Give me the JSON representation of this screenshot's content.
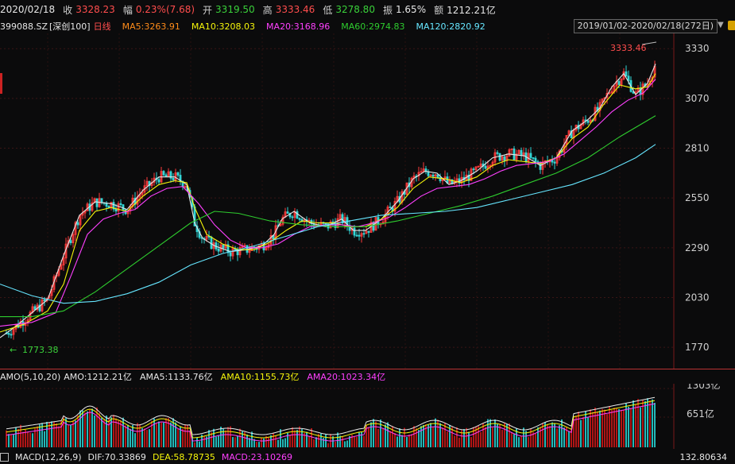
{
  "header": {
    "date": "2020/02/18",
    "close_label": "收",
    "close_value": "3328.23",
    "change_label": "幅",
    "change_value": "0.23%(7.68)",
    "open_label": "开",
    "open_value": "3319.50",
    "high_label": "高",
    "high_value": "3333.46",
    "low_label": "低",
    "low_value": "3278.80",
    "amp_label": "振",
    "amp_value": "1.65%",
    "amount_label": "额",
    "amount_value": "1212.21亿"
  },
  "legend": {
    "code": "399088.SZ",
    "name": "[深创100]",
    "period": "日线",
    "ma5": "MA5:3263.91",
    "ma10": "MA10:3208.03",
    "ma20": "MA20:3168.96",
    "ma60": "MA60:2974.83",
    "ma120": "MA120:2820.92",
    "range": "2019/01/02-2020/02/18(272日)"
  },
  "colors": {
    "up": "#ff3b3b",
    "down": "#33d6d6",
    "ma5": "#e8e8e8",
    "ma10": "#f5f50a",
    "ma20": "#ff40ff",
    "ma60": "#2ecc2e",
    "ma120": "#66e6ff"
  },
  "price_axis": {
    "ticks": [
      "3330",
      "3070",
      "2810",
      "2550",
      "2290",
      "2030",
      "1770"
    ]
  },
  "annotations": {
    "high": "3333.46",
    "low": "1773.38"
  },
  "volume": {
    "title": "AMO(5,10,20)",
    "amo": "AMO:1212.21亿",
    "ama5": "AMA5:1133.76亿",
    "ama10": "AMA10:1155.73亿",
    "ama20": "AMA20:1023.34亿",
    "axis_ticks": [
      "1303亿",
      "651亿"
    ]
  },
  "macd": {
    "title": "MACD(12,26,9)",
    "dif": "DIF:70.33869",
    "dea": "DEA:58.78735",
    "macd": "MACD:23.10269",
    "axis_tick": "132.80634"
  },
  "icons": {
    "dropdown": "triangle-down-icon",
    "lock": "lock-icon",
    "arrow": "left-arrow-icon"
  },
  "chart_data": {
    "type": "candlestick",
    "ylim": [
      1700,
      3360
    ],
    "ma_lines": {
      "ma5": [
        [
          0,
          1820
        ],
        [
          20,
          1880
        ],
        [
          40,
          1950
        ],
        [
          60,
          2020
        ],
        [
          80,
          2250
        ],
        [
          100,
          2460
        ],
        [
          120,
          2530
        ],
        [
          140,
          2520
        ],
        [
          160,
          2490
        ],
        [
          180,
          2590
        ],
        [
          200,
          2660
        ],
        [
          220,
          2660
        ],
        [
          235,
          2620
        ],
        [
          245,
          2420
        ],
        [
          255,
          2340
        ],
        [
          270,
          2300
        ],
        [
          290,
          2270
        ],
        [
          310,
          2280
        ],
        [
          330,
          2300
        ],
        [
          345,
          2360
        ],
        [
          355,
          2440
        ],
        [
          370,
          2480
        ],
        [
          390,
          2420
        ],
        [
          410,
          2400
        ],
        [
          430,
          2440
        ],
        [
          445,
          2380
        ],
        [
          460,
          2380
        ],
        [
          480,
          2440
        ],
        [
          500,
          2530
        ],
        [
          520,
          2650
        ],
        [
          535,
          2690
        ],
        [
          550,
          2680
        ],
        [
          565,
          2620
        ],
        [
          580,
          2640
        ],
        [
          600,
          2690
        ],
        [
          620,
          2760
        ],
        [
          640,
          2780
        ],
        [
          660,
          2770
        ],
        [
          680,
          2720
        ],
        [
          700,
          2760
        ],
        [
          720,
          2900
        ],
        [
          740,
          2960
        ],
        [
          755,
          3020
        ],
        [
          770,
          3130
        ],
        [
          785,
          3200
        ],
        [
          800,
          3090
        ],
        [
          815,
          3150
        ],
        [
          825,
          3250
        ]
      ],
      "ma10": [
        [
          0,
          1850
        ],
        [
          30,
          1890
        ],
        [
          60,
          1960
        ],
        [
          80,
          2100
        ],
        [
          100,
          2380
        ],
        [
          120,
          2480
        ],
        [
          140,
          2500
        ],
        [
          160,
          2480
        ],
        [
          180,
          2560
        ],
        [
          200,
          2620
        ],
        [
          220,
          2640
        ],
        [
          235,
          2630
        ],
        [
          245,
          2500
        ],
        [
          260,
          2360
        ],
        [
          280,
          2310
        ],
        [
          300,
          2280
        ],
        [
          320,
          2280
        ],
        [
          340,
          2320
        ],
        [
          360,
          2380
        ],
        [
          380,
          2430
        ],
        [
          400,
          2420
        ],
        [
          420,
          2420
        ],
        [
          440,
          2400
        ],
        [
          460,
          2400
        ],
        [
          480,
          2440
        ],
        [
          500,
          2500
        ],
        [
          520,
          2600
        ],
        [
          540,
          2660
        ],
        [
          560,
          2650
        ],
        [
          580,
          2630
        ],
        [
          600,
          2660
        ],
        [
          620,
          2720
        ],
        [
          640,
          2750
        ],
        [
          660,
          2740
        ],
        [
          680,
          2730
        ],
        [
          700,
          2760
        ],
        [
          720,
          2860
        ],
        [
          740,
          2920
        ],
        [
          760,
          3040
        ],
        [
          780,
          3140
        ],
        [
          800,
          3120
        ],
        [
          815,
          3130
        ],
        [
          825,
          3200
        ]
      ],
      "ma20": [
        [
          0,
          1880
        ],
        [
          40,
          1900
        ],
        [
          70,
          1950
        ],
        [
          90,
          2150
        ],
        [
          110,
          2360
        ],
        [
          130,
          2440
        ],
        [
          150,
          2470
        ],
        [
          170,
          2490
        ],
        [
          190,
          2560
        ],
        [
          210,
          2600
        ],
        [
          230,
          2610
        ],
        [
          250,
          2520
        ],
        [
          270,
          2410
        ],
        [
          290,
          2330
        ],
        [
          310,
          2290
        ],
        [
          330,
          2290
        ],
        [
          350,
          2310
        ],
        [
          370,
          2360
        ],
        [
          390,
          2400
        ],
        [
          410,
          2410
        ],
        [
          430,
          2410
        ],
        [
          450,
          2400
        ],
        [
          470,
          2420
        ],
        [
          490,
          2450
        ],
        [
          510,
          2500
        ],
        [
          530,
          2560
        ],
        [
          550,
          2600
        ],
        [
          570,
          2610
        ],
        [
          590,
          2620
        ],
        [
          610,
          2650
        ],
        [
          630,
          2690
        ],
        [
          650,
          2720
        ],
        [
          670,
          2730
        ],
        [
          690,
          2740
        ],
        [
          710,
          2780
        ],
        [
          730,
          2850
        ],
        [
          750,
          2920
        ],
        [
          770,
          3000
        ],
        [
          790,
          3060
        ],
        [
          810,
          3100
        ],
        [
          825,
          3170
        ]
      ],
      "ma60": [
        [
          0,
          1930
        ],
        [
          40,
          1930
        ],
        [
          80,
          1960
        ],
        [
          120,
          2060
        ],
        [
          160,
          2180
        ],
        [
          200,
          2300
        ],
        [
          240,
          2420
        ],
        [
          270,
          2480
        ],
        [
          300,
          2470
        ],
        [
          340,
          2430
        ],
        [
          380,
          2410
        ],
        [
          420,
          2400
        ],
        [
          460,
          2400
        ],
        [
          500,
          2430
        ],
        [
          540,
          2470
        ],
        [
          580,
          2510
        ],
        [
          620,
          2560
        ],
        [
          660,
          2620
        ],
        [
          700,
          2680
        ],
        [
          740,
          2760
        ],
        [
          780,
          2870
        ],
        [
          825,
          2980
        ]
      ],
      "ma120": [
        [
          0,
          2100
        ],
        [
          40,
          2040
        ],
        [
          80,
          2000
        ],
        [
          120,
          2010
        ],
        [
          160,
          2050
        ],
        [
          200,
          2110
        ],
        [
          240,
          2200
        ],
        [
          280,
          2260
        ],
        [
          320,
          2300
        ],
        [
          360,
          2350
        ],
        [
          400,
          2400
        ],
        [
          440,
          2430
        ],
        [
          480,
          2460
        ],
        [
          520,
          2470
        ],
        [
          560,
          2480
        ],
        [
          600,
          2500
        ],
        [
          640,
          2540
        ],
        [
          680,
          2580
        ],
        [
          720,
          2620
        ],
        [
          760,
          2680
        ],
        [
          800,
          2760
        ],
        [
          825,
          2830
        ]
      ]
    },
    "candles": []
  }
}
